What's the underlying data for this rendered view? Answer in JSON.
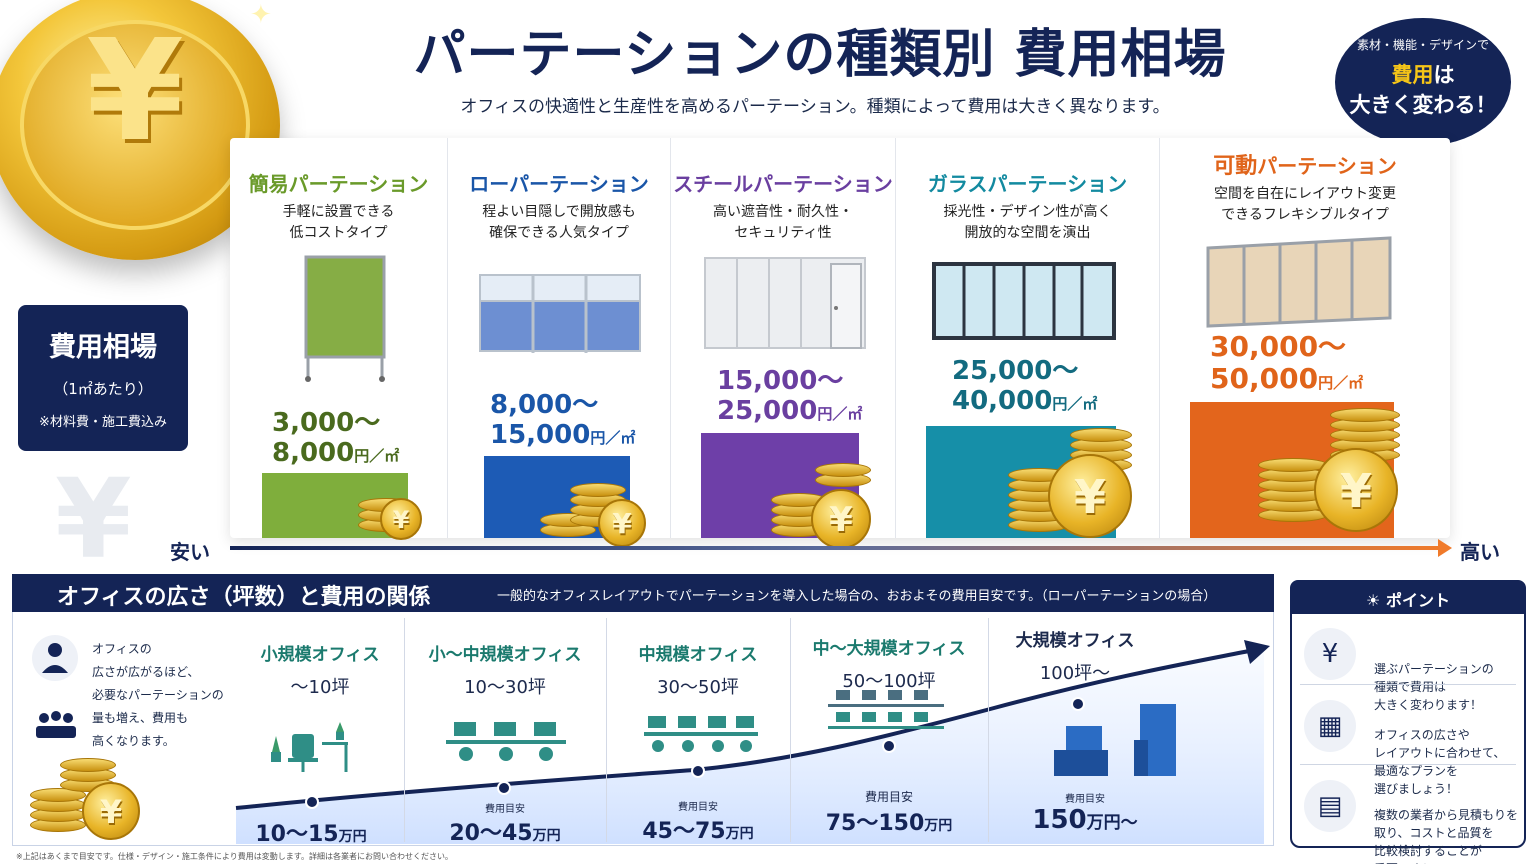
{
  "header": {
    "title": "パーテーションの種類別 費用相場",
    "subtitle": "オフィスの快適性と生産性を高めるパーテーション。種類によって費用は大きく異なります。",
    "bubble_line1": "素材・機能・デザインで",
    "bubble_hl": "費用",
    "bubble_line2": "は",
    "bubble_line3": "大きく変わる！",
    "coin_symbol": "¥"
  },
  "costbox": {
    "title": "費用相場",
    "unit": "（1㎡あたり）",
    "note": "※材料費・施工費込み"
  },
  "types": [
    {
      "name": "簡易パーテーション",
      "desc": "手軽に設置できる\n低コストタイプ",
      "price1": "3,000～",
      "price2": "8,000",
      "unit": "円／㎡",
      "color": "#6a9a2a",
      "bar": "#7fae3c"
    },
    {
      "name": "ローパーテーション",
      "desc": "程よい目隠しで開放感も\n確保できる人気タイプ",
      "price1": "8,000～",
      "price2": "15,000",
      "unit": "円／㎡",
      "color": "#1a56a8",
      "bar": "#1d5bb5"
    },
    {
      "name": "スチールパーテーション",
      "desc": "高い遮音性・耐久性・\nセキュリティ性",
      "price1": "15,000～",
      "price2": "25,000",
      "unit": "円／㎡",
      "color": "#6a3fa0",
      "bar": "#6e3fa8"
    },
    {
      "name": "ガラスパーテーション",
      "desc": "採光性・デザイン性が高く\n開放的な空間を演出",
      "price1": "25,000～",
      "price2": "40,000",
      "unit": "円／㎡",
      "color": "#138aa0",
      "bar": "#168fa8"
    },
    {
      "name_a": "可動",
      "name_b": "パーテーション",
      "desc": "空間を自在にレイアウト変更\nできるフレキシブルタイプ",
      "price1": "30,000～",
      "price2": "50,000",
      "unit": "円／㎡",
      "color": "#e0641a",
      "bar": "#e3651c"
    }
  ],
  "axis": {
    "low": "安い",
    "high": "高い"
  },
  "relation": {
    "title": "オフィスの広さ（坪数）と費用の関係",
    "note": "一般的なオフィスレイアウトでパーテーションを導入した場合の、おおよその費用目安です。（ローパーテーションの場合）",
    "side_text": "オフィスの\n広さが広がるほど、\n必要なパーテーションの\n量も増え、費用も\n高くなります。",
    "offices": [
      {
        "name": "小規模オフィス",
        "size": "～10坪",
        "label": "",
        "value": "10～15",
        "unit": "万円"
      },
      {
        "name": "小～中規模オフィス",
        "size": "10～30坪",
        "label": "費用目安",
        "value": "20～45",
        "unit": "万円"
      },
      {
        "name": "中規模オフィス",
        "size": "30～50坪",
        "label": "費用目安",
        "value": "45～75",
        "unit": "万円"
      },
      {
        "name": "中～大規模オフィス",
        "size": "50～100坪",
        "label": "費用目安",
        "value": "75～150",
        "unit": "万円"
      },
      {
        "name": "大規模オフィス",
        "size": "100坪～",
        "label": "費用目安",
        "value": "150",
        "unit": "万円～"
      }
    ]
  },
  "point": {
    "title": "ポイント",
    "items": [
      {
        "icon": "¥",
        "text": "選ぶパーテーションの\n種類で費用は\n大きく変わります！"
      },
      {
        "icon": "▦",
        "text": "オフィスの広さや\nレイアウトに合わせて、\n最適なプランを\n選びましょう！"
      },
      {
        "icon": "▤",
        "text": "複数の業者から見積もりを\n取り、コストと品質を\n比較検討することが\n重要です！"
      }
    ]
  },
  "footnote": "※上記はあくまで目安です。仕様・デザイン・施工条件により費用は変動します。詳細は各業者にお問い合わせください。"
}
